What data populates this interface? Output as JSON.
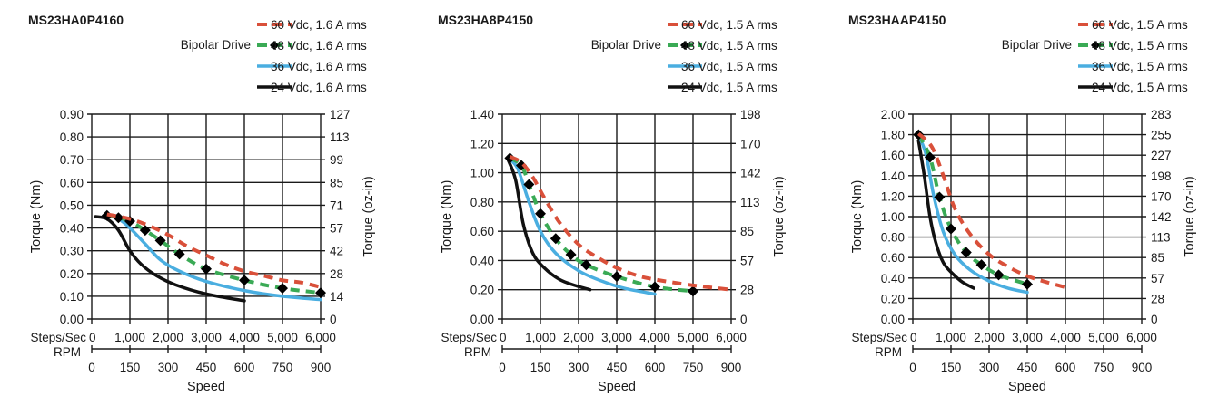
{
  "chart_data": [
    {
      "type": "line",
      "title": "MS23HA0P4160",
      "drive_label": "Bipolar Drive",
      "xlabel": "Speed",
      "x_primary_label": "Steps/Sec",
      "x_secondary_label": "RPM",
      "ylabel": "Torque (Nm)",
      "y2label": "Torque (oz-in)",
      "xlim": [
        0,
        6000
      ],
      "ylim": [
        0,
        0.9
      ],
      "x_ticks": [
        "0",
        "1,000",
        "2,000",
        "3,000",
        "4,000",
        "5,000",
        "6,000"
      ],
      "rpm_ticks": [
        "0",
        "150",
        "300",
        "450",
        "600",
        "750",
        "900"
      ],
      "y_ticks": [
        "0.00",
        "0.10",
        "0.20",
        "0.30",
        "0.40",
        "0.50",
        "0.60",
        "0.70",
        "0.80",
        "0.90"
      ],
      "y2_ticks": [
        "0",
        "14",
        "28",
        "42",
        "57",
        "71",
        "85",
        "99",
        "113",
        "127"
      ],
      "grid": true,
      "legend": "top-right",
      "series": [
        {
          "name": "60 Vdc, 1.6 A rms",
          "color": "#d9503a",
          "style": "dashed",
          "markers": false,
          "x": [
            400,
            1000,
            1500,
            2000,
            2500,
            3000,
            3500,
            4000,
            4500,
            5000,
            5500,
            6000
          ],
          "y": [
            0.46,
            0.44,
            0.41,
            0.37,
            0.32,
            0.28,
            0.24,
            0.21,
            0.19,
            0.17,
            0.16,
            0.14
          ]
        },
        {
          "name": "48 Vdc, 1.6 A rms",
          "color": "#3aaa55",
          "style": "dashed",
          "markers": true,
          "x": [
            400,
            700,
            1000,
            1400,
            1800,
            2300,
            3000,
            4000,
            5000,
            6000
          ],
          "y": [
            0.455,
            0.445,
            0.43,
            0.39,
            0.345,
            0.285,
            0.22,
            0.17,
            0.135,
            0.115
          ]
        },
        {
          "name": "36 Vdc, 1.6 A rms",
          "color": "#4aaee0",
          "style": "solid",
          "markers": false,
          "x": [
            400,
            700,
            1000,
            1400,
            1800,
            2300,
            3000,
            4000,
            5000,
            6000
          ],
          "y": [
            0.455,
            0.44,
            0.4,
            0.33,
            0.26,
            0.21,
            0.165,
            0.125,
            0.1,
            0.085
          ]
        },
        {
          "name": "24 Vdc, 1.6 A rms",
          "color": "#111111",
          "style": "solid",
          "markers": false,
          "x": [
            100,
            400,
            700,
            1000,
            1300,
            1700,
            2200,
            3000,
            4000
          ],
          "y": [
            0.45,
            0.44,
            0.39,
            0.3,
            0.24,
            0.19,
            0.15,
            0.11,
            0.08
          ]
        }
      ]
    },
    {
      "type": "line",
      "title": "MS23HA8P4150",
      "drive_label": "Bipolar Drive",
      "xlabel": "Speed",
      "x_primary_label": "Steps/Sec",
      "x_secondary_label": "RPM",
      "ylabel": "Torque (Nm)",
      "y2label": "Torque (oz-in)",
      "xlim": [
        0,
        6000
      ],
      "ylim": [
        0,
        1.4
      ],
      "x_ticks": [
        "0",
        "1,000",
        "2,000",
        "3,000",
        "4,000",
        "5,000",
        "6,000"
      ],
      "rpm_ticks": [
        "0",
        "150",
        "300",
        "450",
        "600",
        "750",
        "900"
      ],
      "y_ticks": [
        "0.00",
        "0.20",
        "0.40",
        "0.60",
        "0.80",
        "1.00",
        "1.20",
        "1.40"
      ],
      "y2_ticks": [
        "0",
        "28",
        "57",
        "85",
        "113",
        "142",
        "170",
        "198"
      ],
      "grid": true,
      "legend": "top-right",
      "series": [
        {
          "name": "60 Vdc, 1.5 A rms",
          "color": "#d9503a",
          "style": "dashed",
          "markers": false,
          "x": [
            200,
            500,
            800,
            1100,
            1500,
            2000,
            2500,
            3000,
            3500,
            4000,
            5000,
            6000
          ],
          "y": [
            1.11,
            1.07,
            0.97,
            0.83,
            0.66,
            0.51,
            0.42,
            0.35,
            0.3,
            0.27,
            0.23,
            0.2
          ]
        },
        {
          "name": "48 Vdc, 1.5 A rms",
          "color": "#3aaa55",
          "style": "dashed",
          "markers": true,
          "x": [
            200,
            500,
            700,
            1000,
            1400,
            1800,
            2200,
            3000,
            4000,
            5000
          ],
          "y": [
            1.1,
            1.05,
            0.92,
            0.72,
            0.55,
            0.44,
            0.37,
            0.29,
            0.22,
            0.19
          ]
        },
        {
          "name": "36 Vdc, 1.5 A rms",
          "color": "#4aaee0",
          "style": "solid",
          "markers": false,
          "x": [
            150,
            400,
            700,
            1000,
            1400,
            2000,
            2600,
            3200,
            4000
          ],
          "y": [
            1.1,
            1.03,
            0.8,
            0.6,
            0.45,
            0.33,
            0.26,
            0.21,
            0.17
          ]
        },
        {
          "name": "24 Vdc, 1.5 A rms",
          "color": "#111111",
          "style": "solid",
          "markers": false,
          "x": [
            150,
            350,
            550,
            800,
            1100,
            1500,
            1900,
            2300
          ],
          "y": [
            1.09,
            0.95,
            0.65,
            0.45,
            0.35,
            0.27,
            0.23,
            0.2
          ]
        }
      ]
    },
    {
      "type": "line",
      "title": "MS23HAAP4150",
      "drive_label": "Bipolar Drive",
      "xlabel": "Speed",
      "x_primary_label": "Steps/Sec",
      "x_secondary_label": "RPM",
      "ylabel": "Torque (Nm)",
      "y2label": "Torque (oz-in)",
      "xlim": [
        0,
        6000
      ],
      "ylim": [
        0,
        2.0
      ],
      "x_ticks": [
        "0",
        "1,000",
        "2,000",
        "3,000",
        "4,000",
        "5,000",
        "6,000"
      ],
      "rpm_ticks": [
        "0",
        "150",
        "300",
        "450",
        "600",
        "750",
        "900"
      ],
      "y_ticks": [
        "0.00",
        "0.20",
        "0.40",
        "0.60",
        "0.80",
        "1.00",
        "1.20",
        "1.40",
        "1.60",
        "1.80",
        "2.00"
      ],
      "y2_ticks": [
        "0",
        "28",
        "57",
        "85",
        "113",
        "142",
        "170",
        "198",
        "227",
        "255",
        "283"
      ],
      "grid": true,
      "legend": "top-right",
      "series": [
        {
          "name": "60 Vdc, 1.5 A rms",
          "color": "#d9503a",
          "style": "dashed",
          "markers": false,
          "x": [
            150,
            500,
            800,
            1100,
            1500,
            2000,
            2500,
            3000,
            3500,
            4000
          ],
          "y": [
            1.81,
            1.68,
            1.4,
            1.08,
            0.83,
            0.63,
            0.51,
            0.42,
            0.36,
            0.31
          ]
        },
        {
          "name": "48 Vdc, 1.5 A rms",
          "color": "#3aaa55",
          "style": "dashed",
          "markers": true,
          "x": [
            150,
            450,
            700,
            1000,
            1400,
            1800,
            2250,
            3000
          ],
          "y": [
            1.8,
            1.58,
            1.19,
            0.88,
            0.65,
            0.53,
            0.43,
            0.34
          ]
        },
        {
          "name": "36 Vdc, 1.5 A rms",
          "color": "#4aaee0",
          "style": "solid",
          "markers": false,
          "x": [
            150,
            350,
            550,
            800,
            1100,
            1500,
            2000,
            2500,
            3000
          ],
          "y": [
            1.8,
            1.6,
            1.2,
            0.85,
            0.63,
            0.48,
            0.37,
            0.3,
            0.26
          ]
        },
        {
          "name": "24 Vdc, 1.5 A rms",
          "color": "#111111",
          "style": "solid",
          "markers": false,
          "x": [
            150,
            300,
            450,
            600,
            800,
            1050,
            1300,
            1600
          ],
          "y": [
            1.74,
            1.4,
            1.0,
            0.75,
            0.55,
            0.44,
            0.36,
            0.3
          ]
        }
      ]
    }
  ]
}
